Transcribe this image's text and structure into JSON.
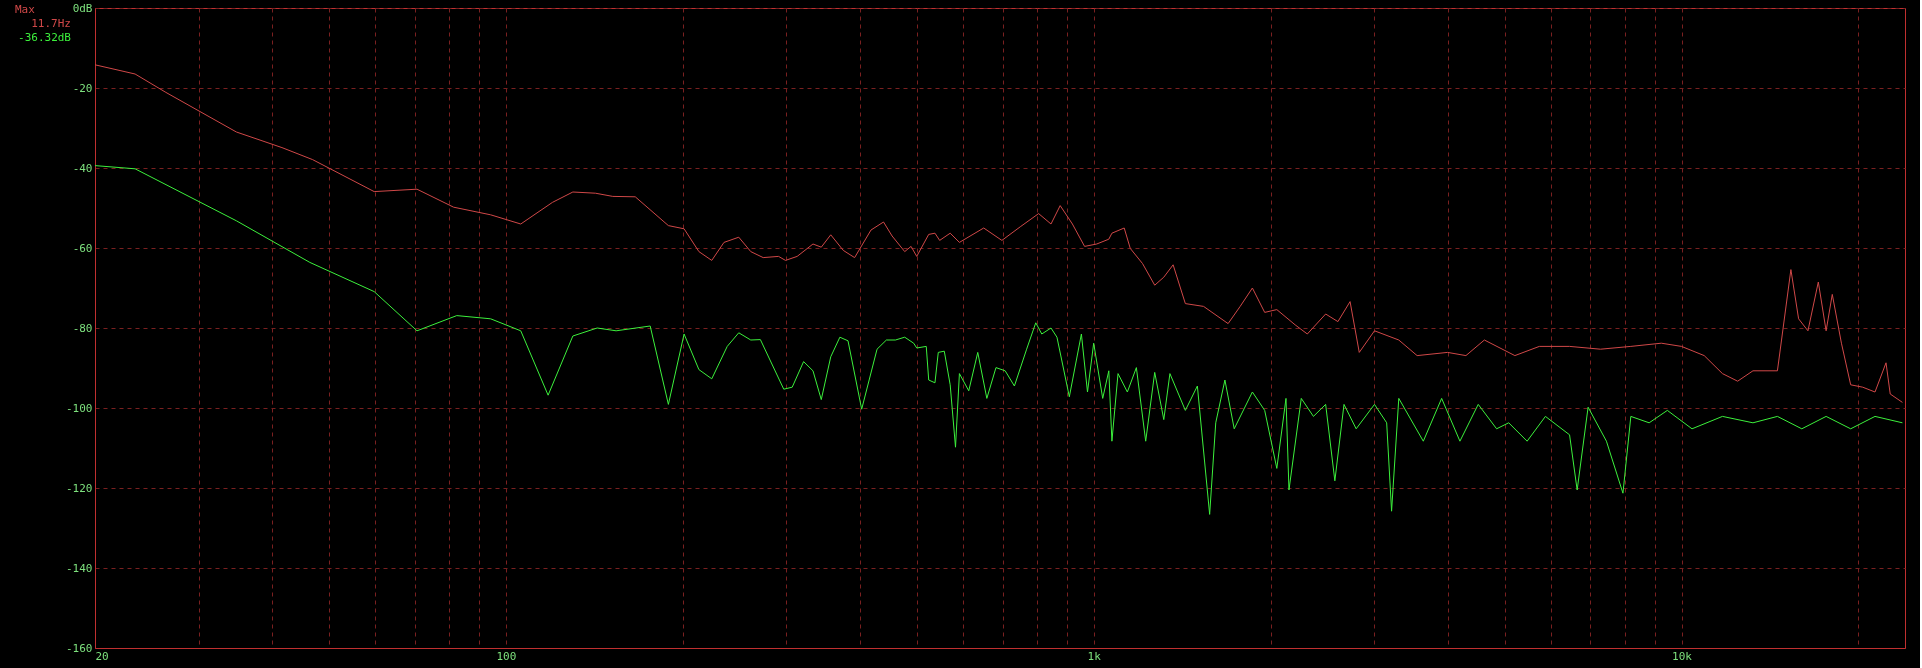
{
  "chart_data": {
    "type": "line",
    "log": "x",
    "grid": true,
    "legend": false,
    "xlim": [
      20,
      24000
    ],
    "ylim": [
      -160,
      0
    ],
    "xticks": [
      20,
      {
        "value": 30,
        "label": null
      },
      {
        "value": 40,
        "label": null
      },
      {
        "value": 50,
        "label": null
      },
      {
        "value": 60,
        "label": null
      },
      {
        "value": 70,
        "label": null
      },
      {
        "value": 80,
        "label": null
      },
      {
        "value": 90,
        "label": null
      },
      100,
      {
        "value": 200,
        "label": null
      },
      {
        "value": 300,
        "label": null
      },
      {
        "value": 400,
        "label": null
      },
      {
        "value": 500,
        "label": null
      },
      {
        "value": 600,
        "label": null
      },
      {
        "value": 700,
        "label": null
      },
      {
        "value": 800,
        "label": null
      },
      {
        "value": 900,
        "label": null
      },
      {
        "value": 1000,
        "label": "1k"
      },
      {
        "value": 2000,
        "label": null
      },
      {
        "value": 3000,
        "label": null
      },
      {
        "value": 4000,
        "label": null
      },
      {
        "value": 5000,
        "label": null
      },
      {
        "value": 6000,
        "label": null
      },
      {
        "value": 7000,
        "label": null
      },
      {
        "value": 8000,
        "label": null
      },
      {
        "value": 9000,
        "label": null
      },
      {
        "value": 10000,
        "label": "10k"
      },
      {
        "value": 20000,
        "label": null
      }
    ],
    "yticks": [
      {
        "value": 0,
        "label": "0dB"
      },
      -20,
      -40,
      -60,
      -80,
      -100,
      -120,
      -140,
      -160
    ],
    "annotations": [
      "Max",
      "11.7Hz",
      "-36.32dB"
    ],
    "series": [
      {
        "color": "#d04848",
        "x": [
          20,
          23.4,
          26.4,
          34.8,
          41.6,
          46.9,
          59.7,
          70.6,
          81.5,
          94.2,
          106,
          120,
          130,
          142,
          152,
          166,
          189,
          201,
          213,
          224,
          235,
          249,
          261,
          274,
          291,
          299,
          313,
          333,
          344,
          357,
          375,
          392,
          418,
          439,
          454,
          477,
          489,
          500,
          524,
          537,
          547,
          570,
          591,
          650,
          698,
          750,
          806,
          846,
          877,
          920,
          965,
          1012,
          1061,
          1074,
          1127,
          1154,
          1211,
          1270,
          1316,
          1365,
          1432,
          1538,
          1693,
          1775,
          1862,
          1954,
          2049,
          2201,
          2309,
          2481,
          2603,
          2730,
          2830,
          3004,
          3304,
          3550,
          4000,
          4298,
          4620,
          5206,
          5730,
          6450,
          7280,
          8200,
          9240,
          10000,
          10930,
          11740,
          12460,
          13230,
          14560,
          15350,
          15820,
          16410,
          17090,
          17620,
          18050,
          18710,
          19400,
          20340,
          21340,
          22280,
          22650,
          23760
        ],
        "values": [
          -14.2,
          -16.5,
          -21.1,
          -31.0,
          -34.9,
          -37.9,
          -45.9,
          -45.3,
          -49.8,
          -51.7,
          -54.0,
          -48.6,
          -46.0,
          -46.3,
          -47.1,
          -47.2,
          -54.4,
          -55.2,
          -60.9,
          -63.1,
          -58.6,
          -57.3,
          -60.9,
          -62.4,
          -62.1,
          -63.1,
          -62.1,
          -59.0,
          -59.8,
          -56.7,
          -60.6,
          -62.4,
          -55.5,
          -53.5,
          -57.0,
          -60.9,
          -59.6,
          -62.1,
          -56.6,
          -56.3,
          -58.1,
          -56.3,
          -58.6,
          -55.0,
          -58.1,
          -54.7,
          -51.4,
          -54.0,
          -49.4,
          -54.0,
          -59.6,
          -59.0,
          -57.8,
          -56.3,
          -55.0,
          -60.1,
          -63.9,
          -69.3,
          -67.3,
          -64.2,
          -73.9,
          -74.6,
          -78.9,
          -74.6,
          -70.0,
          -76.1,
          -75.4,
          -79.2,
          -81.5,
          -76.5,
          -78.4,
          -73.4,
          -86.1,
          -80.7,
          -83.0,
          -86.9,
          -86.1,
          -86.9,
          -83.0,
          -86.9,
          -84.6,
          -84.6,
          -85.3,
          -84.6,
          -83.8,
          -84.6,
          -86.9,
          -91.4,
          -93.3,
          -90.7,
          -90.7,
          -65.4,
          -77.7,
          -80.7,
          -68.5,
          -80.7,
          -71.6,
          -83.8,
          -94.2,
          -94.8,
          -96.0,
          -88.7,
          -96.5,
          -98.6
        ]
      },
      {
        "color": "#3cf03c",
        "x": [
          20,
          23.4,
          34.8,
          46.4,
          59.7,
          70.6,
          82.5,
          94.2,
          106,
          118,
          130,
          143,
          154,
          176,
          189,
          201,
          213,
          224,
          238,
          249,
          261,
          271,
          297,
          307,
          321,
          333,
          344,
          357,
          370,
          382,
          403,
          428,
          444,
          460,
          477,
          494,
          500,
          519,
          524,
          537,
          544,
          557,
          570,
          582,
          591,
          613,
          635,
          658,
          682,
          707,
          733,
          769,
          797,
          816,
          846,
          866,
          909,
          953,
          976,
          1000,
          1036,
          1061,
          1074,
          1100,
          1141,
          1182,
          1226,
          1270,
          1316,
          1348,
          1432,
          1501,
          1575,
          1613,
          1672,
          1734,
          1862,
          1954,
          2049,
          2124,
          2149,
          2255,
          2365,
          2481,
          2572,
          2666,
          2796,
          3004,
          3151,
          3212,
          3304,
          3637,
          3908,
          4198,
          4510,
          4847,
          5082,
          5462,
          5868,
          6450,
          6645,
          6936,
          7452,
          7950,
          8200,
          8810,
          9460,
          10420,
          11740,
          13230,
          14560,
          16020,
          17620,
          19400,
          21340,
          23760
        ],
        "values": [
          -39.4,
          -40.2,
          -53.2,
          -63.6,
          -70.9,
          -80.7,
          -76.9,
          -77.7,
          -80.7,
          -96.8,
          -82.0,
          -80.0,
          -80.7,
          -79.5,
          -99.1,
          -81.5,
          -90.4,
          -92.7,
          -84.6,
          -81.2,
          -83.0,
          -82.9,
          -95.3,
          -94.8,
          -88.4,
          -90.7,
          -97.9,
          -87.2,
          -82.3,
          -83.2,
          -100.3,
          -85.3,
          -83.0,
          -83.0,
          -82.3,
          -83.8,
          -85.0,
          -84.6,
          -93.0,
          -93.7,
          -86.1,
          -85.8,
          -94.2,
          -109.8,
          -91.4,
          -95.7,
          -86.1,
          -97.6,
          -89.9,
          -90.7,
          -94.5,
          -85.3,
          -78.7,
          -81.5,
          -80.0,
          -82.3,
          -97.2,
          -81.5,
          -96.0,
          -83.8,
          -97.6,
          -90.7,
          -108.3,
          -91.4,
          -96.0,
          -89.9,
          -108.3,
          -91.1,
          -102.9,
          -91.4,
          -100.6,
          -94.5,
          -126.6,
          -103.7,
          -93.0,
          -105.2,
          -96.0,
          -100.6,
          -115.1,
          -97.6,
          -120.5,
          -97.6,
          -102.1,
          -99.1,
          -118.2,
          -99.1,
          -105.2,
          -99.1,
          -103.7,
          -125.8,
          -97.6,
          -108.3,
          -97.6,
          -108.3,
          -99.1,
          -105.2,
          -103.7,
          -108.3,
          -102.1,
          -106.7,
          -120.5,
          -99.8,
          -108.3,
          -121.3,
          -102.1,
          -103.7,
          -100.6,
          -105.2,
          -102.1,
          -103.7,
          -102.1,
          -105.2,
          -102.1,
          -105.2,
          -102.1,
          -103.7
        ]
      }
    ]
  }
}
